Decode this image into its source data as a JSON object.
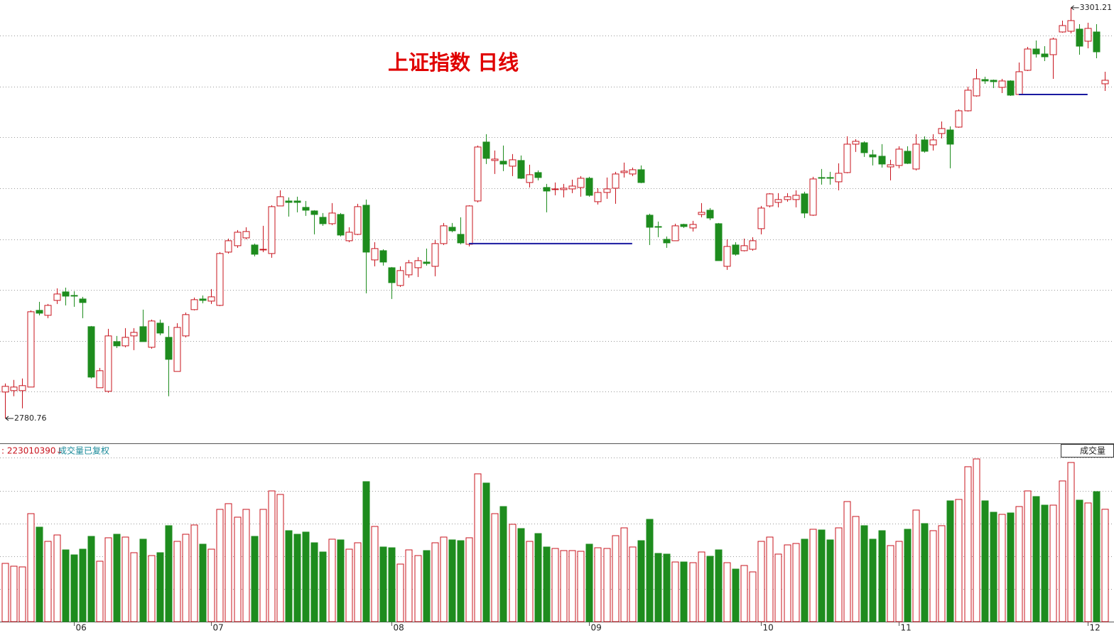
{
  "chart_data": {
    "type": "candlestick",
    "title": "上证指数 日线",
    "categories": [
      null,
      null,
      null,
      null,
      null,
      null,
      null,
      null,
      "06",
      null,
      null,
      null,
      null,
      null,
      null,
      null,
      null,
      null,
      null,
      null,
      null,
      null,
      null,
      null,
      "07",
      null,
      null,
      null,
      null,
      null,
      null,
      null,
      null,
      null,
      null,
      null,
      null,
      null,
      null,
      null,
      null,
      null,
      null,
      null,
      null,
      "08",
      null,
      null,
      null,
      null,
      null,
      null,
      null,
      null,
      null,
      null,
      null,
      null,
      null,
      null,
      null,
      null,
      null,
      null,
      null,
      null,
      null,
      null,
      "09",
      null,
      null,
      null,
      null,
      null,
      null,
      null,
      null,
      null,
      null,
      null,
      null,
      null,
      null,
      null,
      null,
      null,
      null,
      null,
      "10",
      null,
      null,
      null,
      null,
      null,
      null,
      null,
      null,
      null,
      null,
      null,
      null,
      null,
      null,
      null,
      "11",
      null,
      null,
      null,
      null,
      null,
      null,
      null,
      null,
      null,
      null,
      null,
      null,
      null,
      null,
      null,
      null,
      null,
      null,
      null,
      null,
      null,
      "12",
      null,
      null
    ],
    "open": [
      2814.2,
      2816,
      2816,
      2820.5,
      2917.7,
      2911.4,
      2930.3,
      2941.1,
      2936.6,
      2932.1,
      2897,
      2819.6,
      2815.1,
      2878.1,
      2872.7,
      2885.3,
      2897,
      2870.9,
      2901.5,
      2883.5,
      2840.3,
      2885.3,
      2918.6,
      2932.1,
      2929.4,
      2924,
      2991.5,
      2999.6,
      3009.5,
      3000.5,
      2994.2,
      2989.7,
      3050,
      3056.3,
      3056.3,
      3048.2,
      3043.7,
      3035.6,
      3027.5,
      3039.2,
      3005.9,
      3014,
      3050.9,
      2981.6,
      2993.3,
      2971.7,
      2949.2,
      2962.7,
      2971.7,
      2978.9,
      2973.5,
      3002.3,
      3023,
      3014,
      3001.4,
      3056.3,
      3131,
      3107.6,
      3106.7,
      3100.4,
      3107.6,
      3079.7,
      3092.3,
      3073.4,
      3070.7,
      3070.7,
      3071.6,
      3073.4,
      3085.1,
      3055.4,
      3067.1,
      3072.5,
      3092.3,
      3090.5,
      3095.9,
      3038.3,
      3023.9,
      3007.7,
      3005.9,
      3026.6,
      3022.1,
      3039.2,
      3044.6,
      3027.5,
      2973.5,
      3000.5,
      2993.3,
      2995.1,
      3021.2,
      3050,
      3054.5,
      3058.1,
      3058.1,
      3065.3,
      3038.3,
      3086,
      3086,
      3080.6,
      3092.3,
      3128.3,
      3130.1,
      3114.8,
      3113,
      3099.5,
      3101.3,
      3119.3,
      3096.8,
      3133.7,
      3127.4,
      3141.8,
      3146.3,
      3149.9,
      3170.6,
      3189.5,
      3210.2,
      3209.3,
      3200.3,
      3208.4,
      3191.3,
      3221.9,
      3248.9,
      3242.6,
      3241.7,
      3270.5,
      3271.4,
      3274.1,
      3258.8,
      3270.5,
      3204.8
    ],
    "high": [
      2825,
      2829.5,
      2831.3,
      2917.7,
      2928.5,
      2925.8,
      2945.6,
      2946.5,
      2942,
      2934.8,
      2897.9,
      2844.8,
      2894.3,
      2885.3,
      2895.2,
      2895.2,
      2918.6,
      2906,
      2906,
      2897.9,
      2901.5,
      2915,
      2933.9,
      2936.6,
      2944.7,
      2991.5,
      3008.6,
      3019.4,
      3023,
      3002.3,
      3024.8,
      3050.9,
      3069.8,
      3060.8,
      3061.7,
      3056.3,
      3044.6,
      3041,
      3053.6,
      3041,
      3023,
      3052.7,
      3058.1,
      3004.1,
      2995.1,
      2972.6,
      2973.5,
      2981.6,
      2985.2,
      2996,
      3006.8,
      3028.4,
      3028.4,
      3035.6,
      3050.9,
      3126.5,
      3140.9,
      3120.2,
      3126.5,
      3115.7,
      3113.9,
      3102.2,
      3095,
      3077.9,
      3079.7,
      3077.9,
      3083.3,
      3087.8,
      3086.9,
      3072.5,
      3086,
      3093.2,
      3104.9,
      3098.6,
      3101.3,
      3040.1,
      3030.2,
      3011.3,
      3027.5,
      3027.5,
      3031.1,
      3053.6,
      3047.3,
      3028.4,
      3007.7,
      3004.1,
      3008.6,
      3010.4,
      3050,
      3066.2,
      3066.2,
      3066.2,
      3069.8,
      3068,
      3086.9,
      3096.8,
      3093.2,
      3104,
      3138.2,
      3134.6,
      3131.9,
      3121.1,
      3128.3,
      3108.5,
      3125.6,
      3125.6,
      3140.9,
      3138.2,
      3140.9,
      3157.1,
      3150.8,
      3172.4,
      3201.2,
      3223.7,
      3213.8,
      3210.2,
      3211.1,
      3209.3,
      3231.8,
      3251.6,
      3259.7,
      3252.5,
      3263.3,
      3284.9,
      3301.21,
      3280.4,
      3282.2,
      3280.4,
      3220.1
    ],
    "low": [
      2780.76,
      2808.8,
      2793.5,
      2820.5,
      2911.4,
      2907.8,
      2925.8,
      2924,
      2922.2,
      2907.8,
      2831.3,
      2819.6,
      2813.3,
      2870,
      2870.9,
      2867.3,
      2878.1,
      2869.1,
      2886.2,
      2808.8,
      2840.3,
      2883.5,
      2917.7,
      2926.7,
      2925.8,
      2923.1,
      2989.7,
      2996.9,
      3007.7,
      2986.1,
      2991.5,
      2984.3,
      3050,
      3036.5,
      3041.9,
      3037.4,
      3014,
      3024.8,
      3025.7,
      3011.3,
      3004.1,
      3013.1,
      2939.3,
      2973.5,
      2974.4,
      2932.1,
      2947.4,
      2959.1,
      2960,
      2974.4,
      2960.9,
      3000.5,
      3016.7,
      3001.4,
      2998.7,
      3054.5,
      3103.1,
      3090.5,
      3094.1,
      3087.8,
      3084.2,
      3073.4,
      3082.4,
      3041.9,
      3063.5,
      3060.8,
      3066.2,
      3061.7,
      3061.7,
      3051.8,
      3059,
      3052.7,
      3086,
      3087.8,
      3078.8,
      3000.5,
      3010.4,
      2996.9,
      3005.9,
      3022.1,
      3017.6,
      3035.6,
      3032,
      2980.7,
      2969,
      2987,
      2992.4,
      2993.3,
      3014,
      3048.2,
      3048.2,
      3055.4,
      3048.2,
      3034.7,
      3037.4,
      3077,
      3077,
      3069.8,
      3091.4,
      3118.4,
      3112.1,
      3101.3,
      3098.6,
      3082.4,
      3097.7,
      3103.1,
      3095,
      3117.5,
      3120.2,
      3135.5,
      3097.7,
      3149,
      3169.7,
      3188.6,
      3204.8,
      3199.4,
      3193.1,
      3189.5,
      3190.4,
      3221,
      3238.1,
      3233.6,
      3211.1,
      3269.6,
      3268.7,
      3241.7,
      3249.8,
      3237.2,
      3195.8
    ],
    "close": [
      2821.4,
      2820.5,
      2822.3,
      2915.9,
      2914.1,
      2924,
      2938.4,
      2935.7,
      2935.7,
      2927.6,
      2833.1,
      2841.2,
      2885.3,
      2872.7,
      2883.5,
      2889.8,
      2878.1,
      2904.2,
      2888.9,
      2855.6,
      2896.1,
      2912.3,
      2931.2,
      2930.3,
      2934.8,
      2989.7,
      3005.9,
      3016.7,
      3017.6,
      2988.8,
      2995.1,
      3049.1,
      3061.7,
      3054.5,
      3054.5,
      3044.6,
      3039.2,
      3027.5,
      3041,
      3013.1,
      3016.7,
      3049.1,
      2991.5,
      2996,
      2978.9,
      2952.8,
      2968.1,
      2978,
      2980.7,
      2977.1,
      3002.3,
      3024.8,
      3018.5,
      3003.2,
      3050,
      3124.7,
      3110.3,
      3109.4,
      3103.1,
      3108.5,
      3085.1,
      3089.6,
      3086,
      3068.9,
      3071.6,
      3072.5,
      3075.2,
      3085.1,
      3063.5,
      3067.1,
      3071.6,
      3090.5,
      3094.1,
      3095.9,
      3079.7,
      3023,
      3023,
      3003.2,
      3024.8,
      3023.9,
      3026.6,
      3041.9,
      3034.7,
      2980.7,
      2998.7,
      2988.8,
      2999.6,
      3005.9,
      3047.3,
      3065.3,
      3058.1,
      3061.7,
      3063.5,
      3041,
      3084.2,
      3085.1,
      3085.1,
      3091.4,
      3128.3,
      3131.9,
      3117.5,
      3112.1,
      3103.1,
      3102.2,
      3122,
      3104,
      3128.3,
      3119.3,
      3133.7,
      3148.1,
      3128.3,
      3170.6,
      3196.7,
      3211.1,
      3208.4,
      3207.5,
      3208.4,
      3190.4,
      3220.1,
      3248.9,
      3242.6,
      3239,
      3261.5,
      3278.6,
      3284.9,
      3252.5,
      3275,
      3245.3,
      3209.3
    ],
    "up_color": "#c8141e",
    "down_color": "#1e8c1e",
    "ylim": [
      2751,
      3311
    ],
    "yticks": [
      2815,
      2879,
      2944,
      3008,
      3072,
      3137,
      3201,
      3266
    ],
    "grid": true,
    "annotations": [
      {
        "value": 3301.21,
        "index": 124
      },
      {
        "value": 2780.76,
        "index": 0
      }
    ],
    "support_lines": [
      {
        "value": 3002.3,
        "from": 54,
        "to": 73,
        "color": "#1a1aa0"
      },
      {
        "value": 3191.3,
        "from": 118,
        "to": 126,
        "color": "#1a1aa0"
      }
    ],
    "volume": {
      "label": ": 223010390↓",
      "note": "成交量已复权",
      "button": "成交量",
      "ylim": [
        0,
        344000000
      ],
      "yticks": [
        65000000,
        130000000,
        195000000,
        260000000,
        325000000
      ],
      "values": [
        115600000,
        110000000,
        108600000,
        214300000,
        187500000,
        159300000,
        172000000,
        142400000,
        132500000,
        143800000,
        169200000,
        119900000,
        166400000,
        173400000,
        167800000,
        136800000,
        163600000,
        131100000,
        136800000,
        190400000,
        159300000,
        173400000,
        191800000,
        153700000,
        143800000,
        222800000,
        234100000,
        207300000,
        222800000,
        169200000,
        222800000,
        259400000,
        252400000,
        180500000,
        173400000,
        177700000,
        156500000,
        138200000,
        163600000,
        162200000,
        143800000,
        156500000,
        277800000,
        188900000,
        148100000,
        146600000,
        114200000,
        142400000,
        131100000,
        141000000,
        156500000,
        167800000,
        162200000,
        160700000,
        166400000,
        293300000,
        275000000,
        214300000,
        228400000,
        193200000,
        184700000,
        159300000,
        174800000,
        148100000,
        145200000,
        141000000,
        141000000,
        139600000,
        153700000,
        146600000,
        145200000,
        170600000,
        186100000,
        148100000,
        160700000,
        203000000,
        135400000,
        134000000,
        118400000,
        118400000,
        117000000,
        138200000,
        129700000,
        142400000,
        117000000,
        104300000,
        111400000,
        98700000,
        159300000,
        167800000,
        134000000,
        152300000,
        155100000,
        163600000,
        183300000,
        181900000,
        162200000,
        186100000,
        238300000,
        208700000,
        190400000,
        163600000,
        180500000,
        150900000,
        159300000,
        183300000,
        221400000,
        194600000,
        180500000,
        190400000,
        239700000,
        242500000,
        307400000,
        322900000,
        239700000,
        217100000,
        212900000,
        215700000,
        228400000,
        259400000,
        248200000,
        231200000,
        231200000,
        279200000,
        315800000,
        241100000,
        235500000,
        258000000,
        223010390
      ]
    }
  }
}
